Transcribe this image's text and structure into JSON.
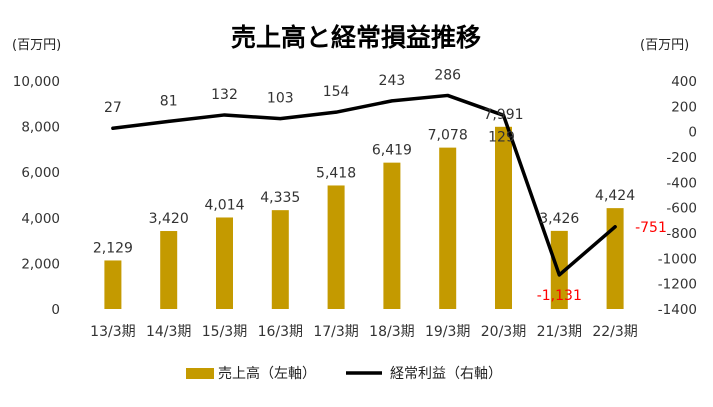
{
  "chart_data": {
    "type": "bar",
    "title": "売上高と経常損益推移",
    "left_unit": "(百万円)",
    "right_unit": "(百万円)",
    "categories": [
      "13/3期",
      "14/3期",
      "15/3期",
      "16/3期",
      "17/3期",
      "18/3期",
      "19/3期",
      "20/3期",
      "21/3期",
      "22/3期"
    ],
    "series": [
      {
        "name": "売上高（左軸）",
        "kind": "bar",
        "axis": "left",
        "color": "#C49A00",
        "values": [
          2129,
          3420,
          4014,
          4335,
          5418,
          6419,
          7078,
          7991,
          3426,
          4424
        ],
        "labels": [
          "2,129",
          "3,420",
          "4,014",
          "4,335",
          "5,418",
          "6,419",
          "7,078",
          "7,991",
          "3,426",
          "4,424"
        ]
      },
      {
        "name": "経常利益（右軸）",
        "kind": "line",
        "axis": "right",
        "color": "#000000",
        "values": [
          27,
          81,
          132,
          103,
          154,
          243,
          286,
          129,
          -1131,
          -751
        ],
        "labels": [
          "27",
          "81",
          "132",
          "103",
          "154",
          "243",
          "286",
          "129",
          "-1,131",
          "-751"
        ],
        "negative_label_color": "#FF0000"
      }
    ],
    "y_left": {
      "min": 0,
      "max": 10000,
      "ticks": [
        "0",
        "2,000",
        "4,000",
        "6,000",
        "8,000",
        "10,000"
      ]
    },
    "y_right": {
      "min": -1400,
      "max": 400,
      "ticks": [
        "400",
        "200",
        "0",
        "-200",
        "-400",
        "-600",
        "-800",
        "-1000",
        "-1200",
        "-1400"
      ]
    },
    "grid": false,
    "legend_position": "bottom"
  }
}
